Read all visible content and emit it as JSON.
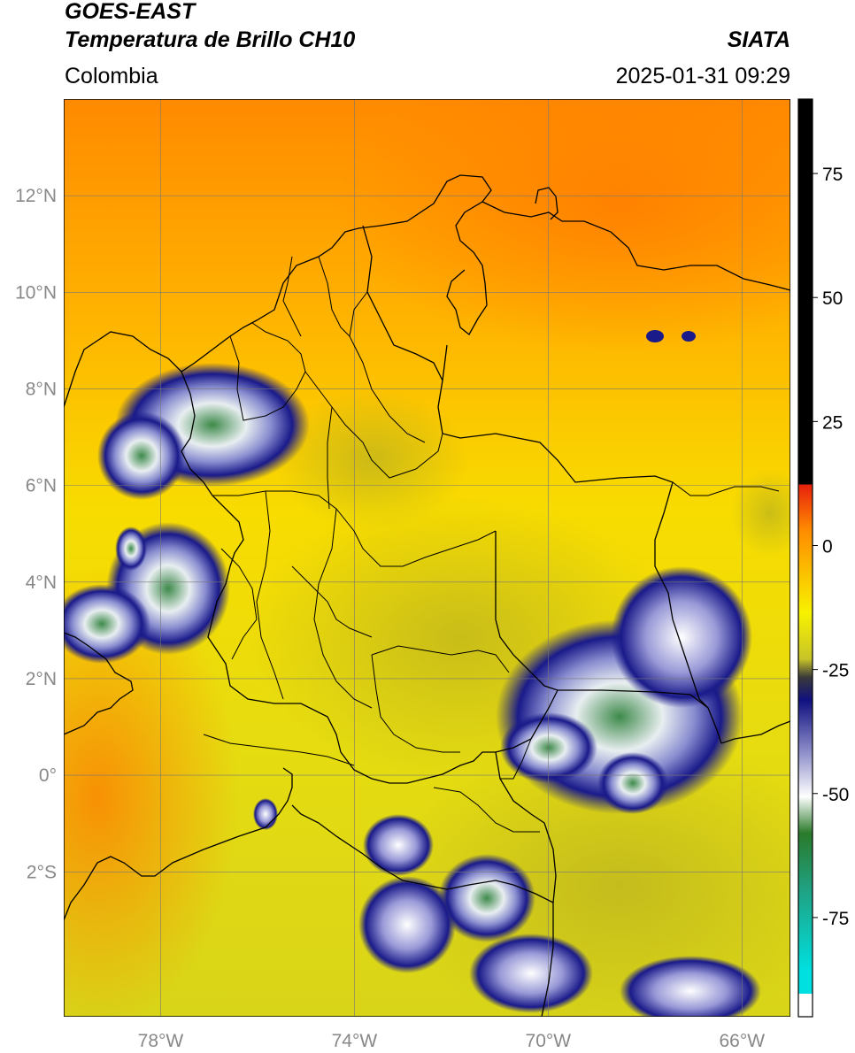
{
  "header": {
    "satellite": "GOES-EAST",
    "product": "Temperatura de Brillo CH10",
    "region": "Colombia",
    "organization": "SIATA",
    "datetime": "2025-01-31 09:29"
  },
  "map": {
    "lon_range": [
      -80,
      -65
    ],
    "lat_range": [
      -5,
      14
    ],
    "lat_ticks": [
      {
        "value": 12,
        "label": "12°N"
      },
      {
        "value": 10,
        "label": "10°N"
      },
      {
        "value": 8,
        "label": "8°N"
      },
      {
        "value": 6,
        "label": "6°N"
      },
      {
        "value": 4,
        "label": "4°N"
      },
      {
        "value": 2,
        "label": "2°N"
      },
      {
        "value": 0,
        "label": "0°"
      },
      {
        "value": -2,
        "label": "2°S"
      }
    ],
    "lon_ticks": [
      {
        "value": -78,
        "label": "78°W"
      },
      {
        "value": -74,
        "label": "74°W"
      },
      {
        "value": -70,
        "label": "70°W"
      },
      {
        "value": -66,
        "label": "66°W"
      }
    ],
    "grid": true
  },
  "colorbar": {
    "range": [
      -95,
      90
    ],
    "ticks": [
      {
        "value": 75,
        "label": "75"
      },
      {
        "value": 50,
        "label": "50"
      },
      {
        "value": 25,
        "label": "25"
      },
      {
        "value": 0,
        "label": "0"
      },
      {
        "value": -25,
        "label": "-25"
      },
      {
        "value": -50,
        "label": "-50"
      },
      {
        "value": -75,
        "label": "-75"
      }
    ],
    "colors": {
      "black": "#000000",
      "red": "#e8200c",
      "orange": "#ff8c00",
      "yellow": "#f7f200",
      "olive": "#9a9a32",
      "gray": "#3a3a3a",
      "navy": "#101080",
      "white": "#ffffff",
      "green": "#2a7a2a",
      "cyan": "#00e0e0"
    }
  }
}
